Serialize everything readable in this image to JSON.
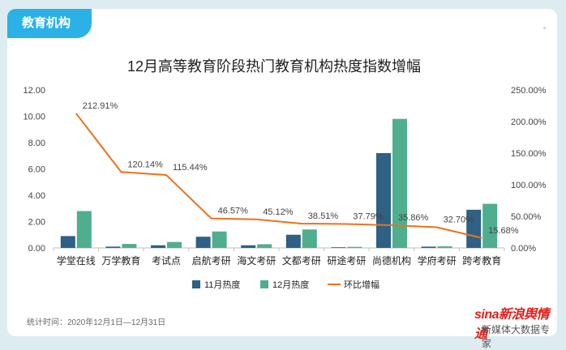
{
  "tag": "教育机构",
  "footer": {
    "time_note": "统计时间：2020年12月1日—12月31日",
    "logo_text": "sina新浪舆情通",
    "logo_sub": "新媒体大数据专家"
  },
  "colors": {
    "nov": "#2e6183",
    "dec": "#4fae8e",
    "line": "#e8731f",
    "tag": "#2bb1e6"
  },
  "chart_data": {
    "type": "bar",
    "title": "12月高等教育阶段热门教育机构热度指数增幅",
    "categories": [
      "学堂在线",
      "万学教育",
      "考试点",
      "启航考研",
      "海文考研",
      "文都考研",
      "研途考研",
      "尚德机构",
      "学府考研",
      "跨考教育"
    ],
    "series": [
      {
        "name": "11月热度",
        "axis": "left",
        "kind": "bar",
        "values": [
          0.9,
          0.1,
          0.2,
          0.85,
          0.2,
          1.0,
          0.05,
          7.2,
          0.1,
          2.9
        ]
      },
      {
        "name": "12月热度",
        "axis": "left",
        "kind": "bar",
        "values": [
          2.8,
          0.3,
          0.45,
          1.25,
          0.28,
          1.4,
          0.08,
          9.8,
          0.12,
          3.35
        ]
      },
      {
        "name": "环比增幅",
        "axis": "right",
        "kind": "line",
        "values": [
          212.91,
          120.14,
          115.44,
          46.57,
          45.12,
          38.51,
          37.79,
          35.86,
          32.7,
          15.68
        ],
        "labels": [
          "212.91%",
          "120.14%",
          "115.44%",
          "46.57%",
          "45.12%",
          "38.51%",
          "37.79%",
          "35.86%",
          "32.70%",
          "15.68%"
        ]
      }
    ],
    "ylim_left": [
      0,
      12
    ],
    "yticks_left": [
      "0.00",
      "2.00",
      "4.00",
      "6.00",
      "8.00",
      "10.00",
      "12.00"
    ],
    "ylim_right": [
      0,
      250
    ],
    "yticks_right": [
      "0.00%",
      "50.00%",
      "100.00%",
      "150.00%",
      "200.00%",
      "250.00%"
    ],
    "legend_position": "bottom",
    "grid": false
  }
}
